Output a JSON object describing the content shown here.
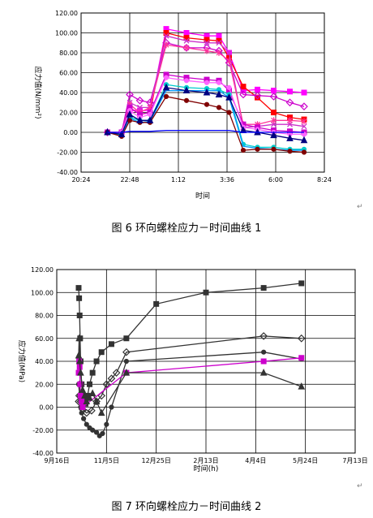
{
  "figures": [
    {
      "caption": "图 6  环向螺栓应力－时间曲线 1",
      "return_mark": "↵"
    },
    {
      "caption": "图 7  环向螺栓应力－时间曲线 2",
      "return_mark": "↵"
    }
  ],
  "chart_data": [
    {
      "type": "line",
      "title": "",
      "xlabel": "时间",
      "ylabel": "应力值(N/mm²)",
      "ylim": [
        -40,
        120
      ],
      "y_ticks": [
        -40,
        -20,
        0,
        20,
        40,
        60,
        80,
        100,
        120
      ],
      "y_tick_labels": [
        "-40.00",
        "-20.00",
        "0.00",
        "20.00",
        "40.00",
        "60.00",
        "80.00",
        "100.00",
        "120.00"
      ],
      "xlim": [
        0,
        12
      ],
      "x_ticks": [
        0,
        2.4,
        4.8,
        7.2,
        9.6,
        12
      ],
      "x_tick_labels": [
        "20:24",
        "22:48",
        "1:12",
        "3:36",
        "6:00",
        "8:24"
      ],
      "grid": true,
      "legend": "none",
      "series": [
        {
          "color": "#ff00ff",
          "marker": "square",
          "x": [
            1.3,
            2,
            2.4,
            2.9,
            3.4,
            4.2,
            5.2,
            6.2,
            6.8,
            7.3,
            8.0,
            8.7,
            9.5,
            10.3,
            11.0
          ],
          "y": [
            0,
            0,
            22,
            22,
            22,
            104,
            100,
            97,
            97,
            80,
            42,
            43,
            42,
            41,
            40
          ]
        },
        {
          "color": "#ff0000",
          "marker": "square",
          "x": [
            1.3,
            2,
            2.4,
            2.9,
            3.4,
            4.2,
            5.2,
            6.2,
            6.8,
            7.3,
            8.0,
            8.7,
            9.5,
            10.3,
            11.0
          ],
          "y": [
            0,
            0,
            25,
            18,
            20,
            100,
            95,
            93,
            92,
            75,
            46,
            35,
            20,
            15,
            13
          ]
        },
        {
          "color": "#cc00cc",
          "marker": "diamond",
          "x": [
            1.3,
            2,
            2.4,
            2.9,
            3.4,
            4.2,
            5.2,
            6.2,
            6.8,
            7.3,
            8.0,
            8.7,
            9.5,
            10.3,
            11.0
          ],
          "y": [
            0,
            0,
            38,
            32,
            30,
            90,
            85,
            85,
            82,
            70,
            38,
            37,
            36,
            30,
            26
          ]
        },
        {
          "color": "#cc33cc",
          "marker": "x",
          "x": [
            1.3,
            2,
            2.4,
            2.9,
            3.4,
            4.2,
            5.2,
            6.2,
            6.8,
            7.3,
            8.0,
            8.7,
            9.5,
            10.3,
            11.0
          ],
          "y": [
            0,
            0,
            30,
            25,
            25,
            97,
            92,
            90,
            90,
            80,
            5,
            6,
            8,
            8,
            6
          ]
        },
        {
          "color": "#ff3399",
          "marker": "asterisk",
          "x": [
            1.3,
            2,
            2.4,
            2.9,
            3.4,
            4.2,
            5.2,
            6.2,
            6.8,
            7.3,
            8.0,
            8.7,
            9.5,
            10.3,
            11.0
          ],
          "y": [
            0,
            0,
            28,
            20,
            25,
            88,
            85,
            82,
            80,
            72,
            8,
            8,
            12,
            12,
            11
          ]
        },
        {
          "color": "#cc00cc",
          "marker": "square",
          "x": [
            1.3,
            2,
            2.4,
            2.9,
            3.4,
            4.2,
            5.2,
            6.2,
            6.8,
            7.3,
            8.0,
            8.7,
            9.5,
            10.3,
            11.0
          ],
          "y": [
            0,
            0,
            25,
            18,
            20,
            58,
            55,
            53,
            52,
            42,
            8,
            5,
            2,
            1,
            0
          ]
        },
        {
          "color": "#ff66ff",
          "marker": "circle",
          "x": [
            1.3,
            2,
            2.4,
            2.9,
            3.4,
            4.2,
            5.2,
            6.2,
            6.8,
            7.3,
            8.0,
            8.7,
            9.5,
            10.3,
            11.0
          ],
          "y": [
            0,
            0,
            22,
            15,
            18,
            55,
            52,
            50,
            50,
            45,
            5,
            3,
            0,
            -2,
            -2
          ]
        },
        {
          "color": "#00cccc",
          "marker": "circle",
          "x": [
            1.3,
            2,
            2.4,
            2.9,
            3.4,
            4.2,
            5.2,
            6.2,
            6.8,
            7.3,
            8.0,
            8.7,
            9.5,
            10.3,
            11.0
          ],
          "y": [
            0,
            -3,
            15,
            12,
            12,
            48,
            45,
            44,
            43,
            38,
            -12,
            -15,
            -15,
            -17,
            -17
          ]
        },
        {
          "color": "#0099ff",
          "marker": "none",
          "x": [
            1.3,
            2,
            2.4,
            2.9,
            3.4,
            4.2,
            5.2,
            6.2,
            6.8,
            7.3,
            8.0,
            8.7,
            9.5,
            10.3,
            11.0
          ],
          "y": [
            0,
            -2,
            14,
            10,
            11,
            42,
            42,
            42,
            42,
            35,
            -14,
            -16,
            -17,
            -18,
            -18
          ]
        },
        {
          "color": "#800000",
          "marker": "circle",
          "x": [
            1.3,
            2,
            2.4,
            2.9,
            3.4,
            4.2,
            5.2,
            6.2,
            6.8,
            7.3,
            8.0,
            8.7,
            9.5,
            10.3,
            11.0
          ],
          "y": [
            0,
            -4,
            12,
            10,
            10,
            36,
            32,
            28,
            25,
            20,
            -18,
            -17,
            -17,
            -19,
            -20
          ]
        },
        {
          "color": "#000080",
          "marker": "triangle",
          "x": [
            1.3,
            2,
            2.4,
            2.9,
            3.4,
            4.2,
            5.2,
            6.2,
            6.8,
            7.3,
            8.0,
            8.7,
            9.5,
            10.3,
            11.0
          ],
          "y": [
            0,
            -2,
            18,
            12,
            12,
            45,
            42,
            40,
            38,
            35,
            2,
            0,
            -3,
            -6,
            -8
          ]
        },
        {
          "color": "#0000ff",
          "marker": "none",
          "x": [
            1.3,
            2,
            2.4,
            2.9,
            3.4,
            4.2,
            5.2,
            6.2,
            6.8,
            7.3,
            8.0,
            8.7,
            9.5,
            10.3,
            11.0
          ],
          "y": [
            0,
            0,
            1,
            1,
            1,
            2,
            2,
            2,
            2,
            2,
            0,
            0,
            0,
            0,
            0
          ]
        }
      ]
    },
    {
      "type": "line",
      "title": "",
      "xlabel": "时间(h)",
      "ylabel": "应力值(MPa)",
      "ylim": [
        -40,
        120
      ],
      "y_ticks": [
        -40,
        -20,
        0,
        20,
        40,
        60,
        80,
        100,
        120
      ],
      "y_tick_labels": [
        "-40.00",
        "-20.00",
        "0.00",
        "20.00",
        "40.00",
        "60.00",
        "80.00",
        "100.00",
        "120.00"
      ],
      "xlim": [
        0,
        300
      ],
      "x_ticks": [
        0,
        50,
        100,
        150,
        200,
        250,
        300
      ],
      "x_tick_labels": [
        "9月16日",
        "11月5日",
        "12月25日",
        "2月13日",
        "4月4日",
        "5月24日",
        "7月13日"
      ],
      "grid": true,
      "legend": "none",
      "series": [
        {
          "color": "#333333",
          "marker": "square",
          "x": [
            22,
            22.5,
            23,
            23.5,
            24,
            25,
            26,
            27,
            29,
            31,
            33,
            36,
            40,
            45,
            55,
            70,
            100,
            150,
            208,
            246
          ],
          "y": [
            104,
            95,
            80,
            60,
            40,
            20,
            10,
            5,
            3,
            10,
            20,
            30,
            40,
            48,
            55,
            60,
            90,
            100,
            104,
            108
          ]
        },
        {
          "color": "#333333",
          "marker": "diamond",
          "x": [
            22,
            22.5,
            23,
            24,
            26,
            30,
            35,
            40,
            45,
            50,
            55,
            60,
            70,
            208,
            246
          ],
          "y": [
            5,
            10,
            20,
            5,
            -2,
            -5,
            -3,
            5,
            10,
            20,
            25,
            30,
            48,
            62,
            60
          ]
        },
        {
          "color": "#333333",
          "marker": "circle",
          "x": [
            22,
            23,
            24,
            25,
            27,
            30,
            33,
            36,
            40,
            43,
            46,
            50,
            55,
            70,
            208,
            246
          ],
          "y": [
            20,
            10,
            0,
            -5,
            -10,
            -15,
            -18,
            -20,
            -22,
            -25,
            -23,
            -15,
            0,
            40,
            48,
            42
          ]
        },
        {
          "color": "#cc00cc",
          "marker": "square",
          "x": [
            22,
            22.5,
            23,
            23.5,
            24,
            25,
            26,
            70,
            208,
            246
          ],
          "y": [
            30,
            40,
            35,
            20,
            10,
            5,
            0,
            30,
            40,
            43
          ]
        },
        {
          "color": "#333333",
          "marker": "triangle",
          "x": [
            22,
            22.5,
            23,
            24,
            26,
            28,
            30,
            33,
            36,
            40,
            45,
            70,
            208,
            246
          ],
          "y": [
            45,
            60,
            40,
            30,
            15,
            10,
            5,
            8,
            12,
            5,
            -5,
            30,
            30,
            18
          ]
        }
      ]
    }
  ]
}
